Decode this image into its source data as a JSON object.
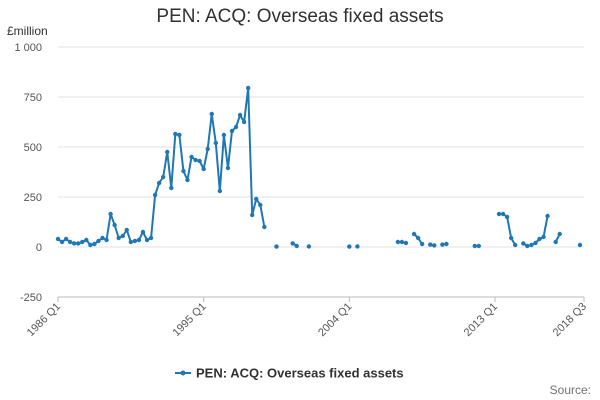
{
  "chart_data": {
    "type": "line",
    "title": "PEN: ACQ: Overseas fixed assets",
    "unit_label": "£million",
    "source_label": "Source:",
    "ylim": [
      -250,
      1000
    ],
    "y_ticks": [
      "-250",
      "0",
      "250",
      "500",
      "750",
      "1 000"
    ],
    "x_ticks": [
      "1986 Q1",
      "1995 Q1",
      "2004 Q1",
      "2013 Q1",
      "2018 Q3"
    ],
    "x_range": [
      "1986 Q1",
      "2018 Q3"
    ],
    "grid": "horizontal",
    "legend_position": "bottom",
    "color": "#1f77b4",
    "series": [
      {
        "name": "PEN: ACQ: Overseas fixed assets",
        "points": [
          [
            "1986 Q1",
            40
          ],
          [
            "1986 Q2",
            25
          ],
          [
            "1986 Q3",
            40
          ],
          [
            "1986 Q4",
            25
          ],
          [
            "1987 Q1",
            18
          ],
          [
            "1987 Q2",
            18
          ],
          [
            "1987 Q3",
            25
          ],
          [
            "1987 Q4",
            35
          ],
          [
            "1988 Q1",
            10
          ],
          [
            "1988 Q2",
            15
          ],
          [
            "1988 Q3",
            30
          ],
          [
            "1988 Q4",
            45
          ],
          [
            "1989 Q1",
            35
          ],
          [
            "1989 Q2",
            165
          ],
          [
            "1989 Q3",
            110
          ],
          [
            "1989 Q4",
            45
          ],
          [
            "1990 Q1",
            55
          ],
          [
            "1990 Q2",
            85
          ],
          [
            "1990 Q3",
            25
          ],
          [
            "1990 Q4",
            30
          ],
          [
            "1991 Q1",
            35
          ],
          [
            "1991 Q2",
            75
          ],
          [
            "1991 Q3",
            35
          ],
          [
            "1991 Q4",
            45
          ],
          [
            "1992 Q1",
            260
          ],
          [
            "1992 Q2",
            320
          ],
          [
            "1992 Q3",
            350
          ],
          [
            "1992 Q4",
            475
          ],
          [
            "1993 Q1",
            295
          ],
          [
            "1993 Q2",
            565
          ],
          [
            "1993 Q3",
            560
          ],
          [
            "1993 Q4",
            380
          ],
          [
            "1994 Q1",
            335
          ],
          [
            "1994 Q2",
            450
          ],
          [
            "1994 Q3",
            435
          ],
          [
            "1994 Q4",
            430
          ],
          [
            "1995 Q1",
            390
          ],
          [
            "1995 Q2",
            490
          ],
          [
            "1995 Q3",
            665
          ],
          [
            "1995 Q4",
            520
          ],
          [
            "1996 Q1",
            280
          ],
          [
            "1996 Q2",
            560
          ],
          [
            "1996 Q3",
            395
          ],
          [
            "1996 Q4",
            580
          ],
          [
            "1997 Q1",
            600
          ],
          [
            "1997 Q2",
            660
          ],
          [
            "1997 Q3",
            625
          ],
          [
            "1997 Q4",
            795
          ],
          [
            "1998 Q1",
            160
          ],
          [
            "1998 Q2",
            240
          ],
          [
            "1998 Q3",
            210
          ],
          [
            "1998 Q4",
            100
          ],
          [
            "1999 Q1",
            null
          ],
          [
            "1999 Q2",
            null
          ],
          [
            "1999 Q3",
            2
          ],
          [
            "1999 Q4",
            null
          ],
          [
            "2000 Q1",
            null
          ],
          [
            "2000 Q2",
            null
          ],
          [
            "2000 Q3",
            18
          ],
          [
            "2000 Q4",
            5
          ],
          [
            "2001 Q1",
            null
          ],
          [
            "2001 Q2",
            null
          ],
          [
            "2001 Q3",
            3
          ],
          [
            "2001 Q4",
            null
          ],
          [
            "2002 Q1",
            null
          ],
          [
            "2002 Q2",
            null
          ],
          [
            "2002 Q3",
            null
          ],
          [
            "2002 Q4",
            null
          ],
          [
            "2003 Q1",
            null
          ],
          [
            "2003 Q2",
            null
          ],
          [
            "2003 Q3",
            null
          ],
          [
            "2003 Q4",
            null
          ],
          [
            "2004 Q1",
            2
          ],
          [
            "2004 Q2",
            null
          ],
          [
            "2004 Q3",
            3
          ],
          [
            "2004 Q4",
            null
          ],
          [
            "2005 Q1",
            null
          ],
          [
            "2005 Q2",
            null
          ],
          [
            "2005 Q3",
            null
          ],
          [
            "2005 Q4",
            null
          ],
          [
            "2006 Q1",
            null
          ],
          [
            "2006 Q2",
            null
          ],
          [
            "2006 Q3",
            null
          ],
          [
            "2006 Q4",
            null
          ],
          [
            "2007 Q1",
            25
          ],
          [
            "2007 Q2",
            25
          ],
          [
            "2007 Q3",
            20
          ],
          [
            "2007 Q4",
            null
          ],
          [
            "2008 Q1",
            65
          ],
          [
            "2008 Q2",
            45
          ],
          [
            "2008 Q3",
            15
          ],
          [
            "2008 Q4",
            null
          ],
          [
            "2009 Q1",
            12
          ],
          [
            "2009 Q2",
            8
          ],
          [
            "2009 Q3",
            null
          ],
          [
            "2009 Q4",
            12
          ],
          [
            "2010 Q1",
            15
          ],
          [
            "2010 Q2",
            null
          ],
          [
            "2010 Q3",
            null
          ],
          [
            "2010 Q4",
            null
          ],
          [
            "2011 Q1",
            null
          ],
          [
            "2011 Q2",
            null
          ],
          [
            "2011 Q3",
            null
          ],
          [
            "2011 Q4",
            5
          ],
          [
            "2012 Q1",
            5
          ],
          [
            "2012 Q2",
            null
          ],
          [
            "2012 Q3",
            null
          ],
          [
            "2012 Q4",
            null
          ],
          [
            "2013 Q1",
            null
          ],
          [
            "2013 Q2",
            165
          ],
          [
            "2013 Q3",
            165
          ],
          [
            "2013 Q4",
            150
          ],
          [
            "2014 Q1",
            45
          ],
          [
            "2014 Q2",
            10
          ],
          [
            "2014 Q3",
            null
          ],
          [
            "2014 Q4",
            18
          ],
          [
            "2015 Q1",
            5
          ],
          [
            "2015 Q2",
            10
          ],
          [
            "2015 Q3",
            20
          ],
          [
            "2015 Q4",
            40
          ],
          [
            "2016 Q1",
            50
          ],
          [
            "2016 Q2",
            155
          ],
          [
            "2016 Q3",
            null
          ],
          [
            "2016 Q4",
            25
          ],
          [
            "2017 Q1",
            65
          ],
          [
            "2017 Q2",
            null
          ],
          [
            "2017 Q3",
            null
          ],
          [
            "2017 Q4",
            null
          ],
          [
            "2018 Q1",
            null
          ],
          [
            "2018 Q2",
            10
          ],
          [
            "2018 Q3",
            null
          ]
        ]
      }
    ]
  }
}
